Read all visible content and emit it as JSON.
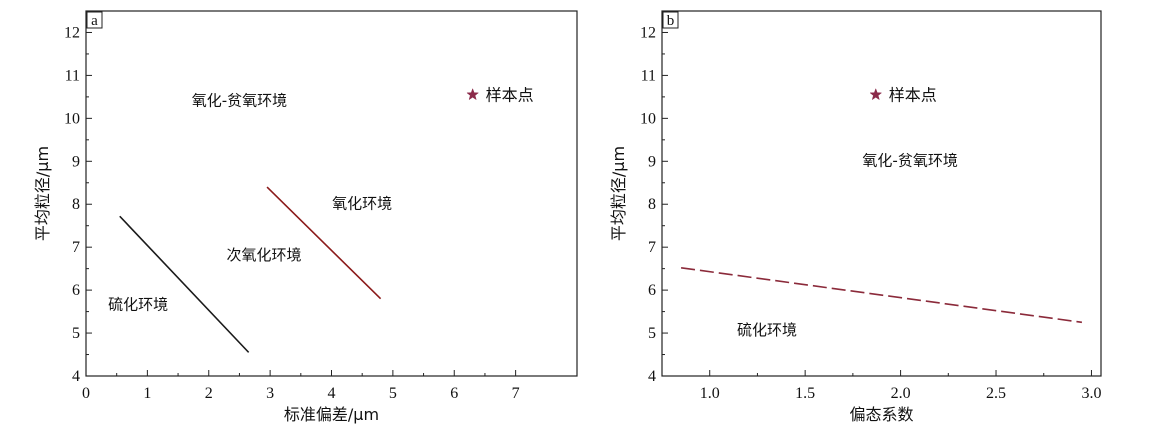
{
  "chart_data": [
    {
      "type": "line",
      "panel": "a",
      "xlabel": "标准偏差/μm",
      "ylabel": "平均粒径/μm",
      "xlim": [
        0,
        8
      ],
      "ylim": [
        4,
        12.5
      ],
      "xticks": [
        0,
        1,
        2,
        3,
        4,
        5,
        6,
        7
      ],
      "yticks": [
        4,
        5,
        6,
        7,
        8,
        9,
        10,
        11,
        12
      ],
      "series": [
        {
          "style": "solid",
          "color": "#1a1a1a",
          "points": [
            [
              0.55,
              7.72
            ],
            [
              2.65,
              4.55
            ]
          ]
        },
        {
          "style": "solid",
          "color": "#8b1a1a",
          "points": [
            [
              2.95,
              8.4
            ],
            [
              4.8,
              5.8
            ]
          ]
        }
      ],
      "markers": [
        {
          "x": 6.3,
          "y": 10.55,
          "symbol": "star",
          "color": "#8b2a4a",
          "label": "样本点"
        }
      ],
      "regions": [
        {
          "text": "氧化-贫氧环境",
          "x": 2.5,
          "y": 10.3
        },
        {
          "text": "氧化环境",
          "x": 4.5,
          "y": 7.9
        },
        {
          "text": "次氧化环境",
          "x": 2.9,
          "y": 6.7
        },
        {
          "text": "硫化环境",
          "x": 0.85,
          "y": 5.55
        }
      ]
    },
    {
      "type": "line",
      "panel": "b",
      "xlabel": "偏态系数",
      "ylabel": "平均粒径/μm",
      "xlim": [
        0.75,
        3.05
      ],
      "ylim": [
        4,
        12.5
      ],
      "xticks": [
        1.0,
        1.5,
        2.0,
        2.5,
        3.0
      ],
      "yticks": [
        4,
        5,
        6,
        7,
        8,
        9,
        10,
        11,
        12
      ],
      "series": [
        {
          "style": "dashed",
          "color": "#8b2a3a",
          "points": [
            [
              0.85,
              6.52
            ],
            [
              2.95,
              5.25
            ]
          ]
        }
      ],
      "markers": [
        {
          "x": 1.87,
          "y": 10.55,
          "symbol": "star",
          "color": "#8b2a4a",
          "label": "样本点"
        }
      ],
      "regions": [
        {
          "text": "氧化-贫氧环境",
          "x": 2.05,
          "y": 8.9
        },
        {
          "text": "硫化环境",
          "x": 1.3,
          "y": 4.95
        }
      ]
    }
  ]
}
